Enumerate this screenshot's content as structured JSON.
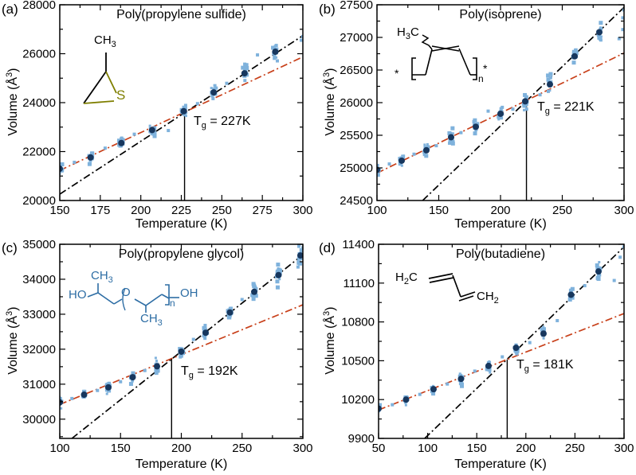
{
  "colors": {
    "scatter": "#7FB2DC",
    "mean": "#17375E",
    "glass_fit": "#C8401A",
    "liquid_fit": "#000000",
    "axis": "#000000",
    "tg_line": "#000000",
    "struct_blue": "#2D6DA4",
    "struct_olive": "#7F7F00"
  },
  "structures": {
    "a": {
      "ch3_main": "CH",
      "ch3_sub": "3",
      "s": "S"
    },
    "b": {
      "h": "H",
      "three": "3",
      "c": "C",
      "n": "n",
      "star_left": "*",
      "star_right": "*"
    },
    "c": {
      "ho": "HO",
      "ch3t_main": "CH",
      "ch3t_sub": "3",
      "o": "O",
      "ch3b_main": "CH",
      "ch3b_sub": "3",
      "n": "n",
      "oh": "OH"
    },
    "d": {
      "h2c_h": "H",
      "h2c_2": "2",
      "h2c_c": "C",
      "ch2_main": "CH",
      "ch2_sub": "2"
    }
  },
  "chart_data": [
    {
      "type": "scatter",
      "panel_label": "(a)",
      "title": "Poly(propylene sulfide)",
      "xlabel": "Temperature (K)",
      "ylabel_pre": "Volume (Å",
      "ylabel_sup": "3",
      "ylabel_post": ")",
      "xlim": [
        150,
        300
      ],
      "ylim": [
        20000,
        28000
      ],
      "xticks": [
        150,
        175,
        200,
        225,
        250,
        275,
        300
      ],
      "xtick_labels": [
        "150",
        "175",
        "200",
        "225",
        "250",
        "275",
        "300"
      ],
      "yticks": [
        20000,
        22000,
        24000,
        26000,
        28000
      ],
      "ytick_labels": [
        "20000",
        "22000",
        "24000",
        "26000",
        "28000"
      ],
      "x_minor": 12.5,
      "y_minor": 1000,
      "tg": {
        "T": 227,
        "v": 23640,
        "label_main": "T",
        "label_sub": "g",
        "label_rest": " = 227K"
      },
      "mean_points": [
        [
          150,
          21300
        ],
        [
          169,
          21760
        ],
        [
          188,
          22350
        ],
        [
          207,
          22880
        ],
        [
          226.5,
          23650
        ],
        [
          245,
          24420
        ],
        [
          264,
          25200
        ],
        [
          283,
          26080
        ]
      ],
      "extra_scatter": [
        [
          159,
          21560
        ],
        [
          178,
          22140
        ],
        [
          196,
          22710
        ],
        [
          217,
          22860
        ],
        [
          235,
          23960
        ],
        [
          253,
          24790
        ],
        [
          272,
          25950
        ],
        [
          299,
          26550
        ],
        [
          300,
          26700
        ]
      ],
      "cluster": {
        "n": 16,
        "sd_T": 1.6,
        "sd_V": 200,
        "grow": 0.1,
        "seed": 7
      },
      "fit_glass": {
        "x1": 150,
        "y1": 21230,
        "x2": 300,
        "y2": 25870
      },
      "fit_liquid": {
        "x1": 150,
        "y1": 20260,
        "x2": 300,
        "y2": 26740
      }
    },
    {
      "type": "scatter",
      "panel_label": "(b)",
      "title": "Poly(isoprene)",
      "xlabel": "Temperature (K)",
      "ylabel_pre": "Volume (Å",
      "ylabel_sup": "3",
      "ylabel_post": ")",
      "xlim": [
        100,
        300
      ],
      "ylim": [
        24500,
        27500
      ],
      "xticks": [
        100,
        150,
        200,
        250,
        300
      ],
      "xtick_labels": [
        "100",
        "150",
        "200",
        "250",
        "300"
      ],
      "yticks": [
        24500,
        25000,
        25500,
        26000,
        26500,
        27000,
        27500
      ],
      "ytick_labels": [
        "24500",
        "25000",
        "25500",
        "26000",
        "26500",
        "27000",
        "27500"
      ],
      "x_minor": 25,
      "y_minor": 250,
      "tg": {
        "T": 221,
        "v": 26040,
        "label_main": "T",
        "label_sub": "g",
        "label_rest": " = 221K"
      },
      "mean_points": [
        [
          100,
          24970
        ],
        [
          120,
          25110
        ],
        [
          140,
          25270
        ],
        [
          160,
          25470
        ],
        [
          180,
          25630
        ],
        [
          200,
          25830
        ],
        [
          220,
          26020
        ],
        [
          240,
          26280
        ],
        [
          260,
          26710
        ],
        [
          280,
          27080
        ]
      ],
      "extra_scatter": [
        [
          110,
          25060
        ],
        [
          130,
          25210
        ],
        [
          148,
          25340
        ],
        [
          168,
          25540
        ],
        [
          190,
          25870
        ],
        [
          210,
          25900
        ],
        [
          232,
          26120
        ],
        [
          296,
          26980
        ],
        [
          299,
          27120
        ],
        [
          299,
          27300
        ],
        [
          300,
          27420
        ]
      ],
      "cluster": {
        "n": 15,
        "sd_T": 1.6,
        "sd_V": 80,
        "grow": 0.1,
        "seed": 13
      },
      "fit_glass": {
        "x1": 100,
        "y1": 24920,
        "x2": 300,
        "y2": 26760
      },
      "fit_liquid": {
        "x1": 137,
        "y1": 24500,
        "x2": 300,
        "y2": 27460
      }
    },
    {
      "type": "scatter",
      "panel_label": "(c)",
      "title": "Poly(propylene glycol)",
      "xlabel": "Temperature (K)",
      "ylabel_pre": "Volume (Å",
      "ylabel_sup": "3",
      "ylabel_post": ")",
      "xlim": [
        100,
        300
      ],
      "ylim": [
        29450,
        35000
      ],
      "xticks": [
        100,
        150,
        200,
        250,
        300
      ],
      "xtick_labels": [
        "100",
        "150",
        "200",
        "250",
        "300"
      ],
      "yticks": [
        30000,
        31000,
        32000,
        33000,
        34000,
        35000
      ],
      "ytick_labels": [
        "30000",
        "31000",
        "32000",
        "33000",
        "34000",
        "35000"
      ],
      "x_minor": 25,
      "y_minor": 500,
      "tg": {
        "T": 192,
        "v": 31720,
        "label_main": "T",
        "label_sub": "g",
        "label_rest": " = 192K"
      },
      "mean_points": [
        [
          100,
          30480
        ],
        [
          120,
          30700
        ],
        [
          140,
          30910
        ],
        [
          160,
          31200
        ],
        [
          180,
          31510
        ],
        [
          200,
          31930
        ],
        [
          220,
          32470
        ],
        [
          240,
          33050
        ],
        [
          260,
          33640
        ],
        [
          280,
          34120
        ],
        [
          298,
          34680
        ]
      ],
      "extra_scatter": [
        [
          110,
          30590
        ],
        [
          131,
          30820
        ],
        [
          150,
          31070
        ],
        [
          170,
          31390
        ],
        [
          210,
          32280
        ],
        [
          250,
          33420
        ],
        [
          296,
          34350
        ],
        [
          300,
          34900
        ]
      ],
      "cluster": {
        "n": 16,
        "sd_T": 1.6,
        "sd_V": 130,
        "grow": 0.12,
        "seed": 21
      },
      "fit_glass": {
        "x1": 100,
        "y1": 30420,
        "x2": 300,
        "y2": 33270
      },
      "fit_liquid": {
        "x1": 110,
        "y1": 29450,
        "x2": 300,
        "y2": 34700
      }
    },
    {
      "type": "scatter",
      "panel_label": "(d)",
      "title": "Poly(butadiene)",
      "xlabel": "Temperature (K)",
      "ylabel_pre": "Volume (Å",
      "ylabel_sup": "3",
      "ylabel_post": ")",
      "xlim": [
        50,
        300
      ],
      "ylim": [
        9900,
        11400
      ],
      "xticks": [
        50,
        100,
        150,
        200,
        250,
        300
      ],
      "xtick_labels": [
        "50",
        "100",
        "150",
        "200",
        "250",
        "300"
      ],
      "yticks": [
        9900,
        10200,
        10500,
        10800,
        11100,
        11400
      ],
      "ytick_labels": [
        "9900",
        "10200",
        "10500",
        "10800",
        "11100",
        "11400"
      ],
      "x_minor": 25,
      "y_minor": 150,
      "tg": {
        "T": 181,
        "v": 10510,
        "label_main": "T",
        "label_sub": "g",
        "label_rest": " = 181K"
      },
      "mean_points": [
        [
          50,
          10130
        ],
        [
          78,
          10200
        ],
        [
          106,
          10280
        ],
        [
          134,
          10360
        ],
        [
          162,
          10460
        ],
        [
          190,
          10600
        ],
        [
          218,
          10710
        ],
        [
          246,
          11010
        ],
        [
          274,
          11190
        ]
      ],
      "extra_scatter": [
        [
          64,
          10160
        ],
        [
          92,
          10240
        ],
        [
          120,
          10320
        ],
        [
          148,
          10420
        ],
        [
          176,
          10530
        ],
        [
          204,
          10640
        ],
        [
          232,
          10810
        ],
        [
          260,
          11080
        ],
        [
          290,
          11120
        ],
        [
          296,
          11300
        ],
        [
          300,
          11380
        ]
      ],
      "cluster": {
        "n": 15,
        "sd_T": 1.6,
        "sd_V": 30,
        "grow": 0.18,
        "seed": 31
      },
      "fit_glass": {
        "x1": 50,
        "y1": 10120,
        "x2": 300,
        "y2": 10865
      },
      "fit_liquid": {
        "x1": 97,
        "y1": 9900,
        "x2": 300,
        "y2": 11380
      }
    }
  ]
}
